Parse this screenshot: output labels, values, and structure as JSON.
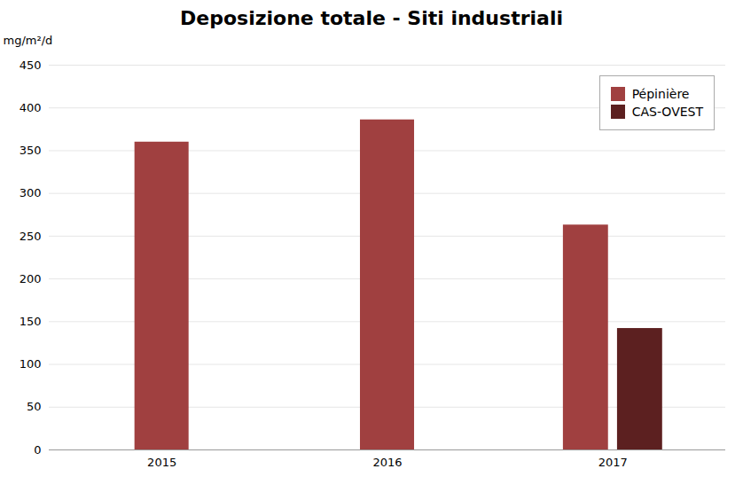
{
  "chart_data": {
    "type": "bar",
    "title": "Deposizione totale - Siti industriali",
    "ylabel": "mg/m²/d",
    "categories": [
      "2015",
      "2016",
      "2017"
    ],
    "series": [
      {
        "name": "Pépinière",
        "color": "#A04040",
        "values": [
          360,
          386,
          263
        ]
      },
      {
        "name": "CAS-OVEST",
        "color": "#5C2020",
        "values": [
          null,
          null,
          142
        ]
      }
    ],
    "ylim": [
      0,
      450
    ],
    "yticks": [
      0,
      50,
      100,
      150,
      200,
      250,
      300,
      350,
      400,
      450
    ],
    "grid": true,
    "legend": "upper right"
  }
}
